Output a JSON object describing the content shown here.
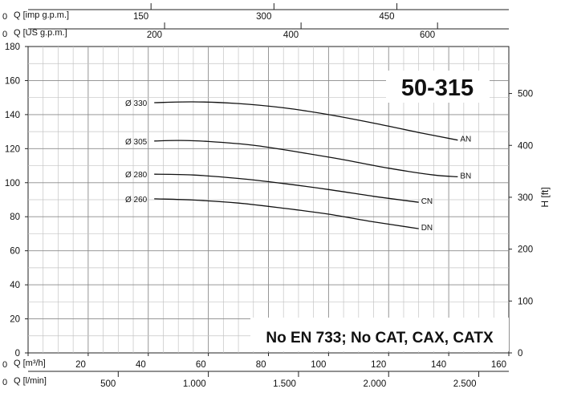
{
  "chart_data": {
    "type": "line",
    "title": "50-315",
    "note": "No EN 733; No CAT, CAX, CATX",
    "x_axis": {
      "label": "Q [m³/h]",
      "range": [
        0,
        160
      ],
      "ticks": [
        0,
        20,
        40,
        60,
        80,
        100,
        120,
        140,
        160
      ],
      "tick_labels": [
        "0",
        "20",
        "40",
        "60",
        "80",
        "100",
        "120",
        "140",
        "160"
      ]
    },
    "x_axis_lmin": {
      "label": "Q [l/min]",
      "ticks": [
        0,
        500,
        1000,
        1500,
        2000,
        2500
      ],
      "tick_labels": [
        "0",
        "500",
        "1.000",
        "1.500",
        "2.000",
        "2.500"
      ]
    },
    "x_axis_usgpm": {
      "label": "Q [US g.p.m.]",
      "ticks": [
        0,
        200,
        400,
        600
      ],
      "tick_labels": [
        "0",
        "200",
        "400",
        "600"
      ]
    },
    "x_axis_impgpm": {
      "label": "Q [imp g.p.m.]",
      "ticks": [
        0,
        150,
        300,
        450
      ],
      "tick_labels": [
        "0",
        "150",
        "300",
        "450"
      ]
    },
    "y_axis": {
      "range": [
        0,
        180
      ],
      "ticks": [
        0,
        20,
        40,
        60,
        80,
        100,
        120,
        140,
        160,
        180
      ],
      "tick_labels": [
        "0",
        "20",
        "40",
        "60",
        "80",
        "100",
        "120",
        "140",
        "160",
        "180"
      ]
    },
    "y_axis_ft": {
      "label": "H [ft]",
      "ticks": [
        0,
        100,
        200,
        300,
        400,
        500
      ],
      "tick_labels": [
        "0",
        "100",
        "200",
        "300",
        "400",
        "500"
      ]
    },
    "grid": true,
    "series": [
      {
        "name": "AN",
        "diameter_label": "Ø 330",
        "points": [
          [
            42,
            147
          ],
          [
            55,
            147.5
          ],
          [
            70,
            146.5
          ],
          [
            85,
            144
          ],
          [
            100,
            140
          ],
          [
            115,
            135
          ],
          [
            130,
            129.5
          ],
          [
            143,
            125
          ]
        ]
      },
      {
        "name": "BN",
        "diameter_label": "Ø 305",
        "points": [
          [
            42,
            124.5
          ],
          [
            50,
            124.8
          ],
          [
            60,
            124.2
          ],
          [
            75,
            122
          ],
          [
            90,
            118
          ],
          [
            105,
            113.5
          ],
          [
            120,
            108.5
          ],
          [
            135,
            104.5
          ],
          [
            143,
            103.5
          ]
        ]
      },
      {
        "name": "CN",
        "diameter_label": "Ø 280",
        "points": [
          [
            42,
            105
          ],
          [
            55,
            104.5
          ],
          [
            70,
            102.5
          ],
          [
            85,
            99.5
          ],
          [
            100,
            96
          ],
          [
            115,
            92
          ],
          [
            130,
            88.5
          ]
        ]
      },
      {
        "name": "DN",
        "diameter_label": "Ø 260",
        "points": [
          [
            42,
            90.5
          ],
          [
            55,
            89.8
          ],
          [
            70,
            88
          ],
          [
            85,
            85
          ],
          [
            100,
            81.5
          ],
          [
            115,
            77
          ],
          [
            130,
            73
          ]
        ]
      }
    ]
  }
}
